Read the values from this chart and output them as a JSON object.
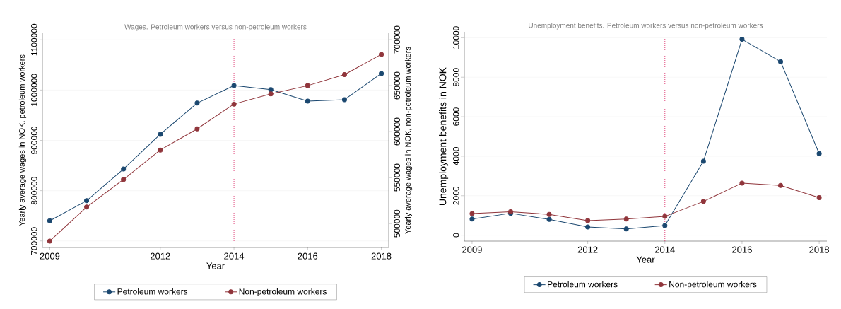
{
  "chart_data": [
    {
      "type": "line",
      "title": "Wages. Petroleum workers versus non-petroleum workers",
      "xlabel": "Year",
      "ylabel": "Yearly average wages in NOK, petroleum workers",
      "y2label": "Yearly average wages in NOK, non-petroleum workers",
      "x": [
        2009,
        2010,
        2011,
        2012,
        2013,
        2014,
        2015,
        2016,
        2017,
        2018
      ],
      "xlim": [
        2008.8,
        2018.2
      ],
      "xticks": [
        2009,
        2012,
        2014,
        2016,
        2018
      ],
      "ylim": [
        687000,
        1113000
      ],
      "yticks": [
        700000,
        800000,
        900000,
        1000000,
        1100000
      ],
      "y2lim": [
        474000,
        707000
      ],
      "y2ticks": [
        500000,
        550000,
        600000,
        650000,
        700000
      ],
      "series": [
        {
          "name": "Petroleum workers",
          "color": "#1a476f",
          "values": [
            740000,
            780000,
            843000,
            912000,
            974000,
            1009000,
            1001000,
            978000,
            981000,
            1033000
          ]
        },
        {
          "name": "Non-petroleum workers",
          "color": "#90353b",
          "axis": "y2",
          "values": [
            481000,
            518000,
            548000,
            580000,
            603000,
            630000,
            641000,
            650000,
            662000,
            684000
          ]
        }
      ],
      "ref_lines": [
        {
          "axis": "x",
          "value": 2014,
          "color": "#e0457b",
          "line_style": "dotted"
        }
      ],
      "grid": "y",
      "legend": "bottom",
      "marker": "circle"
    },
    {
      "type": "line",
      "title": "Unemployment benefits. Petroleum workers versus non-petroleum workers",
      "xlabel": "Year",
      "ylabel": "Unemployment benefits in NOK",
      "x": [
        2009,
        2010,
        2011,
        2012,
        2013,
        2014,
        2015,
        2016,
        2017,
        2018
      ],
      "xlim": [
        2008.8,
        2018.2
      ],
      "xticks": [
        2009,
        2012,
        2014,
        2016,
        2018
      ],
      "ylim": [
        -300,
        10300
      ],
      "yticks": [
        0,
        2000,
        4000,
        6000,
        8000,
        10000
      ],
      "series": [
        {
          "name": "Petroleum workers",
          "color": "#1a476f",
          "values": [
            820,
            1110,
            800,
            420,
            320,
            490,
            3750,
            9920,
            8790,
            4130
          ]
        },
        {
          "name": "Non-petroleum workers",
          "color": "#90353b",
          "values": [
            1100,
            1190,
            1050,
            740,
            820,
            950,
            1710,
            2640,
            2520,
            1900
          ]
        }
      ],
      "ref_lines": [
        {
          "axis": "x",
          "value": 2014,
          "color": "#e0457b",
          "line_style": "dotted"
        }
      ],
      "grid": "y",
      "legend": "bottom",
      "marker": "circle"
    }
  ]
}
